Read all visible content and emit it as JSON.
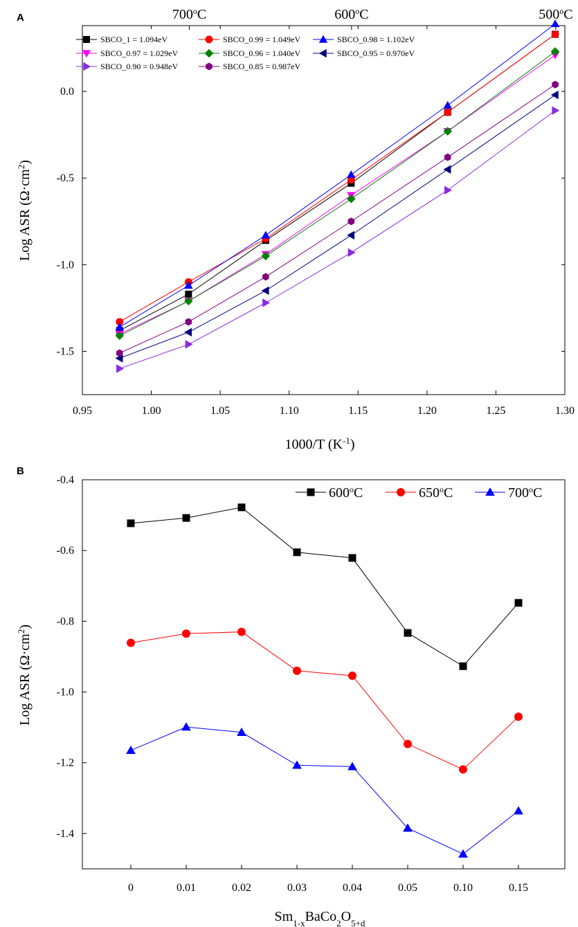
{
  "chart_data": [
    {
      "panel": "A",
      "type": "line",
      "xlabel": "1000/T (K-1)",
      "ylabel": "Log ASR (Ω·cm2)",
      "xlim": [
        0.95,
        1.3
      ],
      "ylim": [
        -1.75,
        0.38
      ],
      "xticks": [
        "0.95",
        "1.00",
        "1.05",
        "1.10",
        "1.15",
        "1.20",
        "1.25",
        "1.30"
      ],
      "yticks": [
        "-1.5",
        "-1.0",
        "-0.5",
        "0.0"
      ],
      "top_axis_labels": [
        "700°C",
        "600°C",
        "500°C"
      ],
      "x": [
        0.977,
        1.027,
        1.083,
        1.145,
        1.215,
        1.293
      ],
      "series": [
        {
          "name": "SBCO_1 = 1.094eV",
          "color": "#000000",
          "marker": "square",
          "values": [
            -1.38,
            -1.17,
            -0.86,
            -0.53,
            -0.12,
            0.33
          ]
        },
        {
          "name": "SBCO_0.99 = 1.049eV",
          "color": "#ff0000",
          "marker": "circle",
          "values": [
            -1.33,
            -1.1,
            -0.85,
            -0.51,
            -0.12,
            0.33
          ]
        },
        {
          "name": "SBCO_0.98 = 1.102eV",
          "color": "#0000ff",
          "marker": "triangle-up",
          "values": [
            -1.36,
            -1.12,
            -0.83,
            -0.48,
            -0.08,
            0.39
          ]
        },
        {
          "name": "SBCO_0.97 = 1.029eV",
          "color": "#ff00ff",
          "marker": "triangle-down",
          "values": [
            -1.4,
            -1.21,
            -0.94,
            -0.6,
            -0.23,
            0.21
          ]
        },
        {
          "name": "SBCO_0.96 = 1.040eV",
          "color": "#008000",
          "marker": "diamond",
          "values": [
            -1.41,
            -1.21,
            -0.95,
            -0.62,
            -0.23,
            0.23
          ]
        },
        {
          "name": "SBCO_0.95 = 0.970eV",
          "color": "#000080",
          "marker": "triangle-left",
          "values": [
            -1.54,
            -1.39,
            -1.15,
            -0.83,
            -0.45,
            -0.02
          ]
        },
        {
          "name": "SBCO_0.90 = 0.948eV",
          "color": "#8a2be2",
          "marker": "triangle-right",
          "values": [
            -1.6,
            -1.46,
            -1.22,
            -0.93,
            -0.57,
            -0.11
          ]
        },
        {
          "name": "SBCO_0.85 = 0.987eV",
          "color": "#800080",
          "marker": "hexagon",
          "values": [
            -1.51,
            -1.33,
            -1.07,
            -0.75,
            -0.38,
            0.04
          ]
        }
      ]
    },
    {
      "panel": "B",
      "type": "line",
      "xlabel": "Sm1-xBaCo2O5+d",
      "ylabel": "Log ASR (Ω·cm2)",
      "categories": [
        "0",
        "0.01",
        "0.02",
        "0.03",
        "0.04",
        "0.05",
        "0.10",
        "0.15"
      ],
      "ylim": [
        -1.5,
        -0.4
      ],
      "yticks": [
        "-1.4",
        "-1.2",
        "-1.0",
        "-0.8",
        "-0.6",
        "-0.4"
      ],
      "series": [
        {
          "name": "600°C",
          "color": "#000000",
          "marker": "square",
          "values": [
            -0.523,
            -0.508,
            -0.478,
            -0.605,
            -0.621,
            -0.833,
            -0.927,
            -0.748
          ]
        },
        {
          "name": "650°C",
          "color": "#ff0000",
          "marker": "circle",
          "values": [
            -0.861,
            -0.835,
            -0.83,
            -0.94,
            -0.954,
            -1.147,
            -1.219,
            -1.07
          ]
        },
        {
          "name": "700°C",
          "color": "#0000ff",
          "marker": "triangle-up",
          "values": [
            -1.165,
            -1.099,
            -1.114,
            -1.207,
            -1.211,
            -1.385,
            -1.458,
            -1.336
          ]
        }
      ]
    }
  ],
  "panel_labels": [
    "A",
    "B"
  ]
}
